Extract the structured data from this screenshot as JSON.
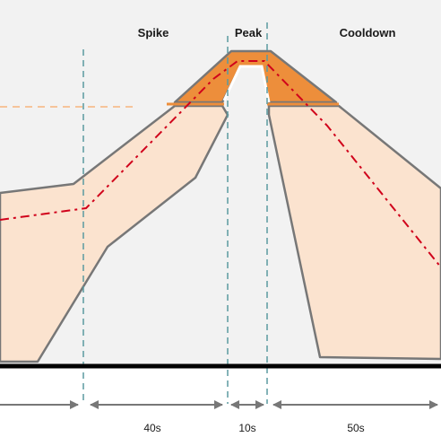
{
  "phases": {
    "spike": "Spike",
    "peak": "Peak",
    "cooldown": "Cooldown"
  },
  "durations": {
    "spike": "40s",
    "peak": "10s",
    "cooldown": "50s"
  },
  "colors": {
    "plot_background": "#f2f2f2",
    "band_fill": "#fbe3cf",
    "band_outline": "#777777",
    "peak_fill": "#ed8e3b",
    "dashdot_line": "#d0021b",
    "phase_divider": "#5b9aa0",
    "reference_line": "#f6c49a",
    "baseline": "#000000",
    "arrow": "#777777"
  }
}
